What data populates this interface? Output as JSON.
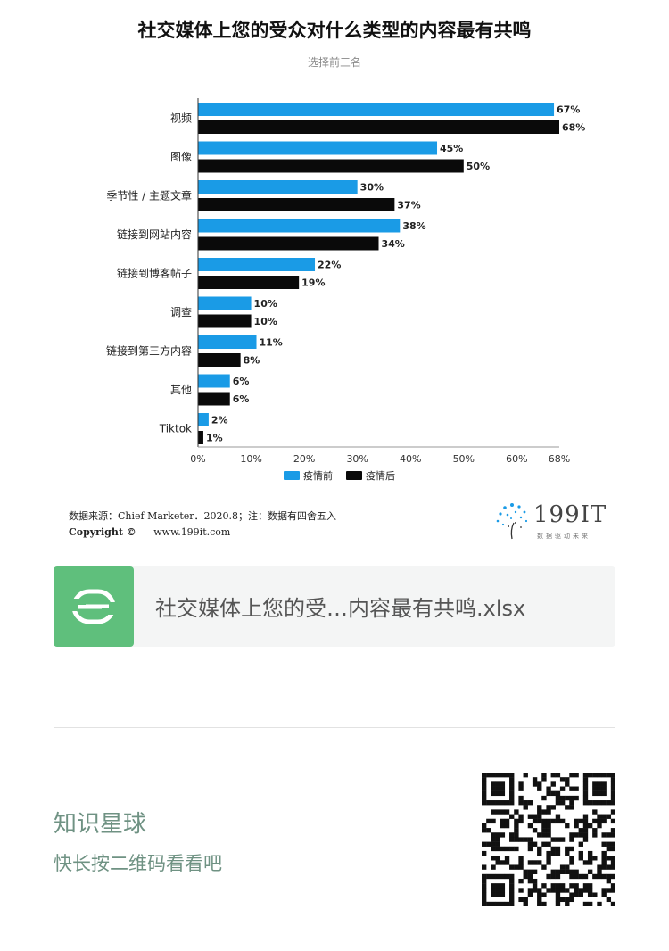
{
  "header": {
    "title": "社交媒体上您的受众对什么类型的内容最有共鸣",
    "subtitle": "选择前三名"
  },
  "chart_data": {
    "type": "bar",
    "orientation": "horizontal",
    "title": "社交媒体上您的受众对什么类型的内容最有共鸣",
    "subtitle": "选择前三名",
    "categories": [
      "视频",
      "图像",
      "季节性 / 主题文章",
      "链接到网站内容",
      "链接到博客帖子",
      "调查",
      "链接到第三方内容",
      "其他",
      "Tiktok"
    ],
    "series": [
      {
        "name": "疫情前",
        "color": "#1a9be6",
        "values": [
          67,
          45,
          30,
          38,
          22,
          10,
          11,
          6,
          2
        ]
      },
      {
        "name": "疫情后",
        "color": "#0a0a0a",
        "values": [
          68,
          50,
          37,
          34,
          19,
          10,
          8,
          6,
          1
        ]
      }
    ],
    "xlim": [
      0,
      68
    ],
    "x_ticks": [
      "0%",
      "10%",
      "20%",
      "30%",
      "40%",
      "50%",
      "60%",
      "68%"
    ],
    "value_suffix": "%",
    "legend_position": "bottom-center",
    "grid": false
  },
  "footer": {
    "source": "数据来源：Chief Marketer．2020.8；注：数据有四舍五入",
    "copyright_label": "Copyright ©",
    "copyright_url": "www.199it.com"
  },
  "brand": {
    "name": "199IT",
    "tagline": "数据驱动未来",
    "accent": "#1a9be6"
  },
  "file_card": {
    "icon": "spreadsheet-icon",
    "icon_color": "#5fbf7c",
    "file_name": "社交媒体上您的受…内容最有共鸣.xlsx"
  },
  "promo": {
    "title": "知识星球",
    "subtitle": "快长按二维码看看吧",
    "color": "#6f9283"
  }
}
